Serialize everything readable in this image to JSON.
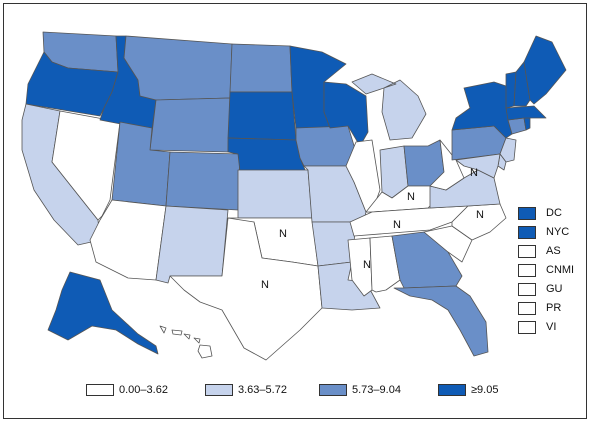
{
  "colors": {
    "c0": "#ffffff",
    "c1": "#c6d3ec",
    "c2": "#6a8fc8",
    "c3": "#0f5bb5",
    "border": "#555555"
  },
  "states": {
    "WA": "c2",
    "OR": "c3",
    "CA": "c1",
    "NV": "c0",
    "ID": "c3",
    "MT": "c2",
    "WY": "c2",
    "UT": "c2",
    "AZ": "c0",
    "CO": "c2",
    "NM": "c1",
    "ND": "c2",
    "SD": "c3",
    "NE": "c3",
    "KS": "c1",
    "OK": "c0",
    "TX": "c0",
    "MN": "c3",
    "IA": "c2",
    "MO": "c1",
    "AR": "c1",
    "LA": "c1",
    "WI": "c3",
    "IL": "c0",
    "MI": "c1",
    "IN": "c1",
    "OH": "c2",
    "KY": "c0",
    "TN": "c0",
    "MS": "c0",
    "AL": "c0",
    "GA": "c2",
    "FL": "c2",
    "SC": "c0",
    "NC": "c0",
    "VA": "c1",
    "WV": "c0",
    "PA": "c2",
    "NY": "c3",
    "NJ": "c1",
    "DE": "c1",
    "MD": "c1",
    "CT": "c2",
    "RI": "c3",
    "MA": "c3",
    "VT": "c3",
    "NH": "c3",
    "ME": "c3",
    "AK": "c3",
    "HI": "c0"
  },
  "map_labels": [
    "N",
    "N",
    "N",
    "N",
    "N",
    "N",
    "N"
  ],
  "territories": [
    {
      "label": "DC",
      "color": "c3"
    },
    {
      "label": "NYC",
      "color": "c3"
    },
    {
      "label": "AS",
      "color": "c0"
    },
    {
      "label": "CNMI",
      "color": "c0"
    },
    {
      "label": "GU",
      "color": "c0"
    },
    {
      "label": "PR",
      "color": "c0"
    },
    {
      "label": "VI",
      "color": "c0"
    }
  ],
  "legend": [
    {
      "label": "0.00–3.62",
      "color": "c0"
    },
    {
      "label": "3.63–5.72",
      "color": "c1"
    },
    {
      "label": "5.73–9.04",
      "color": "c2"
    },
    {
      "label": "≥9.05",
      "color": "c3"
    }
  ]
}
